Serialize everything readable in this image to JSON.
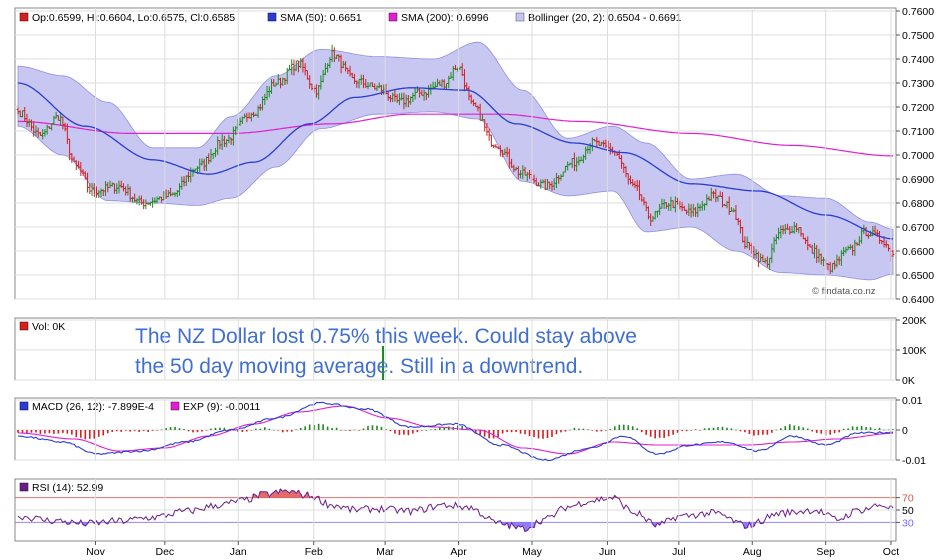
{
  "chart_data": [
    {
      "type": "candlestick",
      "panel": "price",
      "legend": {
        "ohlc": "Op:0.6599, Hi:0.6604, Lo:0.6575, Cl:0.6585",
        "sma50": "SMA (50): 0.6651",
        "sma200": "SMA (200): 0.6996",
        "bollinger": "Bollinger (20, 2): 0.6504 - 0.6691"
      },
      "ylim": [
        0.64,
        0.76
      ],
      "yticks": [
        "0.7600",
        "0.7500",
        "0.7400",
        "0.7300",
        "0.7200",
        "0.7100",
        "0.7000",
        "0.6900",
        "0.6800",
        "0.6700",
        "0.6600",
        "0.6500",
        "0.6400"
      ],
      "watermark": "© findata.co.nz",
      "close_anchors": [
        [
          0,
          0.718
        ],
        [
          10,
          0.708
        ],
        [
          18,
          0.716
        ],
        [
          26,
          0.695
        ],
        [
          33,
          0.685
        ],
        [
          45,
          0.687
        ],
        [
          55,
          0.68
        ],
        [
          68,
          0.683
        ],
        [
          80,
          0.695
        ],
        [
          92,
          0.706
        ],
        [
          105,
          0.718
        ],
        [
          115,
          0.73
        ],
        [
          125,
          0.738
        ],
        [
          133,
          0.727
        ],
        [
          140,
          0.742
        ],
        [
          150,
          0.731
        ],
        [
          160,
          0.728
        ],
        [
          170,
          0.722
        ],
        [
          180,
          0.726
        ],
        [
          190,
          0.73
        ],
        [
          196,
          0.737
        ],
        [
          203,
          0.72
        ],
        [
          212,
          0.705
        ],
        [
          225,
          0.692
        ],
        [
          235,
          0.687
        ],
        [
          248,
          0.697
        ],
        [
          256,
          0.705
        ],
        [
          265,
          0.702
        ],
        [
          275,
          0.686
        ],
        [
          282,
          0.674
        ],
        [
          290,
          0.68
        ],
        [
          300,
          0.676
        ],
        [
          310,
          0.683
        ],
        [
          318,
          0.678
        ],
        [
          325,
          0.662
        ],
        [
          333,
          0.655
        ],
        [
          340,
          0.668
        ],
        [
          347,
          0.67
        ],
        [
          354,
          0.66
        ],
        [
          362,
          0.653
        ],
        [
          370,
          0.66
        ],
        [
          378,
          0.668
        ],
        [
          385,
          0.665
        ],
        [
          390,
          0.6585
        ]
      ],
      "sma50_anchors": [
        [
          0,
          0.73
        ],
        [
          30,
          0.712
        ],
        [
          60,
          0.698
        ],
        [
          85,
          0.692
        ],
        [
          105,
          0.697
        ],
        [
          130,
          0.713
        ],
        [
          150,
          0.724
        ],
        [
          175,
          0.728
        ],
        [
          200,
          0.727
        ],
        [
          222,
          0.713
        ],
        [
          248,
          0.705
        ],
        [
          270,
          0.701
        ],
        [
          300,
          0.688
        ],
        [
          330,
          0.685
        ],
        [
          360,
          0.675
        ],
        [
          390,
          0.6651
        ]
      ],
      "sma200_anchors": [
        [
          0,
          0.714
        ],
        [
          50,
          0.709
        ],
        [
          95,
          0.709
        ],
        [
          140,
          0.713
        ],
        [
          175,
          0.717
        ],
        [
          215,
          0.717
        ],
        [
          250,
          0.714
        ],
        [
          300,
          0.709
        ],
        [
          345,
          0.704
        ],
        [
          390,
          0.6996
        ]
      ],
      "bb_upper_anchors": [
        [
          0,
          0.737
        ],
        [
          20,
          0.733
        ],
        [
          40,
          0.722
        ],
        [
          60,
          0.703
        ],
        [
          80,
          0.703
        ],
        [
          95,
          0.716
        ],
        [
          115,
          0.733
        ],
        [
          135,
          0.744
        ],
        [
          160,
          0.741
        ],
        [
          185,
          0.74
        ],
        [
          205,
          0.747
        ],
        [
          225,
          0.727
        ],
        [
          245,
          0.707
        ],
        [
          265,
          0.712
        ],
        [
          280,
          0.705
        ],
        [
          300,
          0.69
        ],
        [
          320,
          0.692
        ],
        [
          340,
          0.683
        ],
        [
          360,
          0.682
        ],
        [
          380,
          0.672
        ],
        [
          390,
          0.6691
        ]
      ],
      "bb_lower_anchors": [
        [
          0,
          0.712
        ],
        [
          20,
          0.7
        ],
        [
          40,
          0.681
        ],
        [
          60,
          0.68
        ],
        [
          80,
          0.679
        ],
        [
          95,
          0.682
        ],
        [
          115,
          0.695
        ],
        [
          135,
          0.711
        ],
        [
          160,
          0.717
        ],
        [
          185,
          0.718
        ],
        [
          205,
          0.715
        ],
        [
          225,
          0.689
        ],
        [
          245,
          0.683
        ],
        [
          265,
          0.685
        ],
        [
          280,
          0.668
        ],
        [
          300,
          0.67
        ],
        [
          320,
          0.66
        ],
        [
          340,
          0.651
        ],
        [
          360,
          0.65
        ],
        [
          380,
          0.648
        ],
        [
          390,
          0.6504
        ]
      ]
    },
    {
      "type": "bar",
      "panel": "volume",
      "legend": "Vol: 0K",
      "ylim": [
        0,
        200
      ],
      "yticks": [
        "200K",
        "100K",
        "0K"
      ],
      "annotation": [
        "The NZ Dollar lost 0.75% this week. Could stay above",
        "the 50 day moving average. Still in a downtrend."
      ]
    },
    {
      "type": "line",
      "panel": "macd",
      "legend": {
        "macd": "MACD (26, 12): -7.899E-4",
        "signal": "EXP (9): -0.0011"
      },
      "ylim": [
        -0.01,
        0.01
      ],
      "yticks": [
        "0.01",
        "0",
        "-0.01"
      ],
      "macd_anchors": [
        [
          0,
          -0.002
        ],
        [
          20,
          -0.004
        ],
        [
          35,
          -0.008
        ],
        [
          55,
          -0.007
        ],
        [
          75,
          -0.004
        ],
        [
          95,
          0.0
        ],
        [
          115,
          0.004
        ],
        [
          135,
          0.009
        ],
        [
          155,
          0.007
        ],
        [
          175,
          0.001
        ],
        [
          195,
          0.002
        ],
        [
          215,
          -0.005
        ],
        [
          235,
          -0.01
        ],
        [
          255,
          -0.006
        ],
        [
          270,
          -0.002
        ],
        [
          285,
          -0.008
        ],
        [
          300,
          -0.005
        ],
        [
          315,
          -0.004
        ],
        [
          330,
          -0.007
        ],
        [
          345,
          -0.002
        ],
        [
          360,
          -0.005
        ],
        [
          375,
          -0.001
        ],
        [
          390,
          -0.0008
        ]
      ],
      "signal_anchors": [
        [
          0,
          -0.001
        ],
        [
          25,
          -0.003
        ],
        [
          45,
          -0.007
        ],
        [
          65,
          -0.006
        ],
        [
          85,
          -0.002
        ],
        [
          105,
          0.002
        ],
        [
          125,
          0.006
        ],
        [
          145,
          0.008
        ],
        [
          165,
          0.004
        ],
        [
          185,
          0.001
        ],
        [
          205,
          0.0
        ],
        [
          225,
          -0.006
        ],
        [
          245,
          -0.008
        ],
        [
          265,
          -0.004
        ],
        [
          285,
          -0.005
        ],
        [
          305,
          -0.005
        ],
        [
          325,
          -0.005
        ],
        [
          345,
          -0.004
        ],
        [
          365,
          -0.003
        ],
        [
          390,
          -0.0011
        ]
      ]
    },
    {
      "type": "line",
      "panel": "rsi",
      "legend": "RSI (14): 52.99",
      "ylim": [
        0,
        100
      ],
      "yticks": [
        "70",
        "50",
        "30"
      ],
      "rsi_anchors": [
        [
          0,
          40
        ],
        [
          15,
          33
        ],
        [
          30,
          28
        ],
        [
          45,
          32
        ],
        [
          60,
          38
        ],
        [
          75,
          48
        ],
        [
          90,
          58
        ],
        [
          100,
          65
        ],
        [
          110,
          75
        ],
        [
          120,
          80
        ],
        [
          130,
          73
        ],
        [
          140,
          58
        ],
        [
          150,
          50
        ],
        [
          160,
          52
        ],
        [
          175,
          48
        ],
        [
          190,
          58
        ],
        [
          200,
          55
        ],
        [
          215,
          28
        ],
        [
          225,
          20
        ],
        [
          235,
          35
        ],
        [
          245,
          55
        ],
        [
          255,
          65
        ],
        [
          265,
          70
        ],
        [
          275,
          45
        ],
        [
          285,
          25
        ],
        [
          295,
          40
        ],
        [
          310,
          45
        ],
        [
          325,
          25
        ],
        [
          340,
          45
        ],
        [
          355,
          50
        ],
        [
          365,
          35
        ],
        [
          375,
          50
        ],
        [
          385,
          58
        ],
        [
          390,
          53
        ]
      ]
    }
  ],
  "x_axis": {
    "months": [
      "Nov",
      "Dec",
      "Jan",
      "Feb",
      "Mar",
      "Apr",
      "May",
      "Jun",
      "Jul",
      "Aug",
      "Sep",
      "Oct"
    ],
    "month_pos": [
      38,
      72,
      108,
      145,
      180,
      216,
      252,
      289,
      324,
      360,
      396,
      428
    ]
  },
  "colors": {
    "up": "#1f8a1f",
    "down": "#d21f1f",
    "sma50": "#2b3bd3",
    "sma200": "#e020d0",
    "bollinger_fill": "#c5c5f2",
    "bollinger_edge": "#8a8ae0",
    "macd": "#2b3bd3",
    "signal": "#e020d0",
    "rsi": "#6a1d8a",
    "rsi_fill": "#7a66ff",
    "rsi_over": "#e05050"
  }
}
